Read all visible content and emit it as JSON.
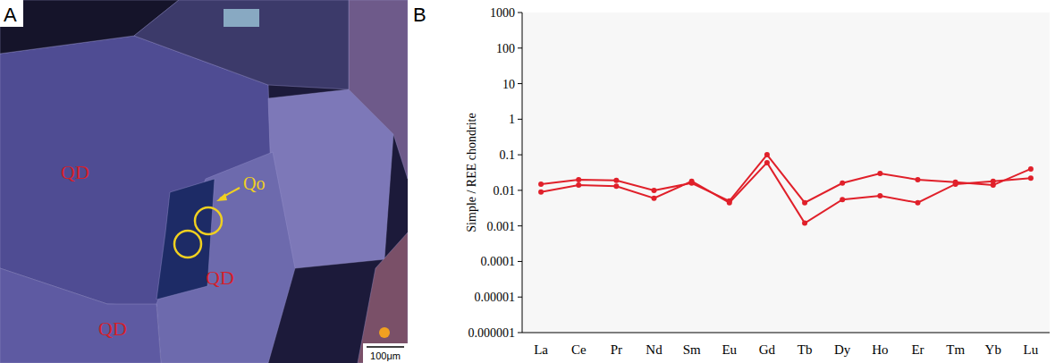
{
  "image_panel": {
    "label": "A",
    "labels": [
      "QD",
      "QD",
      "QD"
    ],
    "arrow_label": "Qo",
    "scale_bar": "100μm"
  },
  "chart_data": {
    "type": "line",
    "panel_label": "B",
    "y_label": "Simple / REE chondrite",
    "categories": [
      "La",
      "Ce",
      "Pr",
      "Nd",
      "Sm",
      "Eu",
      "Gd",
      "Tb",
      "Dy",
      "Ho",
      "Er",
      "Tm",
      "Yb",
      "Lu"
    ],
    "series": [
      {
        "color": "#e0202a",
        "marker": "circle",
        "values": [
          0.015,
          0.02,
          0.019,
          0.01,
          0.016,
          0.005,
          0.1,
          0.0045,
          0.016,
          0.03,
          0.02,
          0.017,
          0.014,
          0.04
        ]
      },
      {
        "color": "#e0202a",
        "marker": "circle",
        "values": [
          0.009,
          0.014,
          0.013,
          0.006,
          0.018,
          0.0045,
          0.06,
          0.0012,
          0.0055,
          0.007,
          0.0045,
          0.015,
          0.018,
          0.022
        ]
      }
    ],
    "log": "y",
    "ylim": [
      1e-06,
      1000
    ],
    "yticks": [
      1e-06,
      1e-05,
      0.0001,
      0.001,
      0.01,
      0.1,
      1,
      10,
      100,
      1000
    ],
    "grid": false
  }
}
